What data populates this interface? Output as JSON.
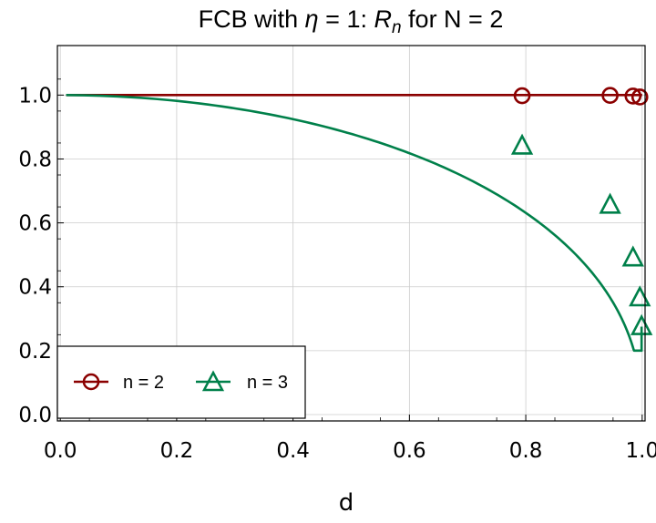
{
  "chart_data": {
    "type": "line",
    "title": "FCB with η = 1: Rₙ for N = 2",
    "title_parts": {
      "prefix": "FCB with ",
      "eta": "η",
      "mid": " = 1: ",
      "R": "R",
      "sub": "n",
      "suffix": " for N = 2"
    },
    "xlabel": "d",
    "ylabel": "",
    "xlim": [
      -0.005,
      1.005
    ],
    "ylim": [
      -0.02,
      1.155
    ],
    "x_ticks": [
      "0.0",
      "0.2",
      "0.4",
      "0.6",
      "0.8",
      "1.0"
    ],
    "y_ticks": [
      "0.0",
      "0.2",
      "0.4",
      "0.6",
      "0.8",
      "1.0"
    ],
    "grid": true,
    "legend_position": "bottom-left",
    "series": [
      {
        "name": "n = 2",
        "color": "#8b0000",
        "marker": "circle",
        "curve": {
          "x": [
            0.01,
            1.0
          ],
          "y": [
            1.0,
            1.0
          ]
        },
        "markers": {
          "x": [
            0.7937,
            0.9449,
            0.9843,
            0.996
          ],
          "y": [
            0.998,
            0.999,
            0.997,
            0.994
          ]
        }
      },
      {
        "name": "n = 3",
        "color": "#00804a",
        "marker": "triangle",
        "curve_model": "sqrt(1 - d^2)^0.9",
        "markers": {
          "x": [
            0.7937,
            0.9449,
            0.9843,
            0.996,
            0.999
          ],
          "y": [
            0.84,
            0.655,
            0.49,
            0.365,
            0.275
          ]
        }
      }
    ]
  }
}
